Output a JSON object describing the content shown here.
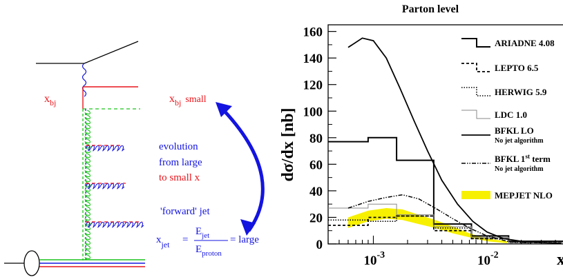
{
  "colors": {
    "red": "#e8141a",
    "blue": "#1414e0",
    "green": "#1bc41b",
    "black": "#000000",
    "yellow": "#f7f000"
  },
  "diagram": {
    "xbj_label": "x",
    "xbj_sub": "bj",
    "xbj_small_x": "x",
    "xbj_small_sub": "bj",
    "xbj_small_word": "small",
    "evolution_line1": "evolution",
    "evolution_line2": "from large",
    "evolution_line3": "to small x",
    "forward_jet": "'forward' jet",
    "formula_x": "x",
    "formula_jet_sub": "jet",
    "formula_equals": "=",
    "formula_num_e": "E",
    "formula_num_sub": "jet",
    "formula_den_e": "E",
    "formula_den_sub": "proton",
    "formula_large": "= large"
  },
  "chart_data": {
    "type": "line",
    "title": "Parton level",
    "ylabel": "dσ/dx [nb]",
    "xlabel": "x",
    "xscale": "log",
    "xlim": [
      0.0004,
      0.05
    ],
    "ylim": [
      0,
      165
    ],
    "yticks": [
      0,
      20,
      40,
      60,
      80,
      100,
      120,
      140,
      160
    ],
    "xtick_labels": [
      {
        "base": "10",
        "exp": "-3",
        "value": 0.001
      },
      {
        "base": "10",
        "exp": "-2",
        "value": 0.01
      }
    ],
    "bin_edges": [
      0.0004,
      0.0009,
      0.0016,
      0.0034,
      0.0073,
      0.0155,
      0.05
    ],
    "series": [
      {
        "name": "ARIADNE 4.08",
        "style": "hist-solid",
        "values": [
          77,
          80,
          63,
          15,
          6,
          2
        ]
      },
      {
        "name": "LEPTO 6.5",
        "style": "hist-dashed",
        "values": [
          14,
          20,
          21,
          10,
          4,
          1
        ]
      },
      {
        "name": "HERWIG 5.9",
        "style": "hist-dotted",
        "values": [
          18,
          17,
          21,
          12,
          4,
          1
        ]
      },
      {
        "name": "LDC 1.0",
        "style": "hist-thin-gray",
        "values": [
          27,
          30,
          22,
          13,
          5,
          1
        ]
      },
      {
        "name": "BFKL LO",
        "sublabel": "No jet algorithm",
        "style": "curve-solid",
        "x": [
          0.0006,
          0.0008,
          0.001,
          0.0013,
          0.0017,
          0.0023,
          0.003,
          0.004,
          0.0055,
          0.0075,
          0.01,
          0.014,
          0.02,
          0.03,
          0.045
        ],
        "values": [
          148,
          155,
          153,
          140,
          118,
          92,
          70,
          48,
          30,
          17,
          9,
          4,
          2,
          1,
          0.5
        ]
      },
      {
        "name": "BFKL 1st term",
        "sublabel": "No jet algorithm",
        "style": "curve-dashdot",
        "x": [
          0.0006,
          0.0009,
          0.0013,
          0.0018,
          0.0025,
          0.0035,
          0.005,
          0.007,
          0.01,
          0.015,
          0.025
        ],
        "values": [
          27,
          32,
          35,
          37,
          34,
          27,
          19,
          12,
          6,
          2,
          0.5
        ]
      },
      {
        "name": "MEPJET NLO",
        "style": "band-yellow",
        "x": [
          0.0006,
          0.0009,
          0.0013,
          0.0018,
          0.0025,
          0.0035,
          0.005,
          0.007,
          0.01,
          0.015
        ],
        "upper": [
          20,
          25,
          27,
          26,
          22,
          18,
          13,
          8,
          4,
          2
        ],
        "lower": [
          12,
          17,
          19,
          18,
          15,
          12,
          8,
          5,
          2,
          0.5
        ]
      }
    ],
    "legend_placement": "top-right"
  }
}
